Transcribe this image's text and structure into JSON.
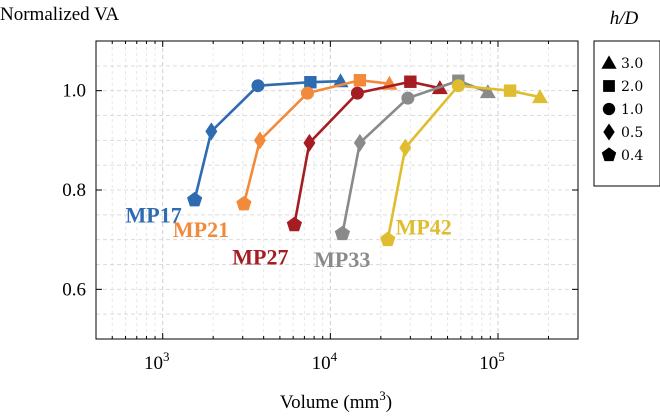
{
  "chart_data": {
    "type": "scatter",
    "ylabel": "Normalized VA",
    "xlabel_main": "Volume (mm",
    "xlabel_exp": "3",
    "xlabel_tail": ")",
    "x_scale": "log",
    "xlim": [
      400,
      300000
    ],
    "ylim": [
      0.5,
      1.1
    ],
    "grid": true,
    "x_ticks": [
      {
        "value": 1000,
        "base": "10",
        "exp": "3"
      },
      {
        "value": 10000,
        "base": "10",
        "exp": "4"
      },
      {
        "value": 100000,
        "base": "10",
        "exp": "5"
      }
    ],
    "y_ticks": [
      {
        "value": 0.6,
        "label": "0.6"
      },
      {
        "value": 0.8,
        "label": "0.8"
      },
      {
        "value": 1.0,
        "label": "1.0"
      }
    ],
    "legend": {
      "title": "h/D",
      "position": "right",
      "entries": [
        {
          "marker": "triangle",
          "label": "3.0"
        },
        {
          "marker": "square",
          "label": "2.0"
        },
        {
          "marker": "circle",
          "label": "1.0"
        },
        {
          "marker": "diamond",
          "label": "0.5"
        },
        {
          "marker": "pentagon",
          "label": "0.4"
        }
      ]
    },
    "series": [
      {
        "name": "MP17",
        "color": "#2e6bb0",
        "label_at": {
          "x": 600,
          "y": 0.735
        },
        "points": [
          {
            "x": 1550,
            "y": 0.78,
            "marker": "pentagon"
          },
          {
            "x": 1950,
            "y": 0.918,
            "marker": "diamond"
          },
          {
            "x": 3700,
            "y": 1.01,
            "marker": "circle"
          },
          {
            "x": 7600,
            "y": 1.017,
            "marker": "square"
          },
          {
            "x": 11500,
            "y": 1.019,
            "marker": "triangle"
          }
        ]
      },
      {
        "name": "MP21",
        "color": "#f28a3c",
        "label_at": {
          "x": 1150,
          "y": 0.705
        },
        "points": [
          {
            "x": 3050,
            "y": 0.772,
            "marker": "pentagon"
          },
          {
            "x": 3800,
            "y": 0.9,
            "marker": "diamond"
          },
          {
            "x": 7300,
            "y": 0.995,
            "marker": "circle"
          },
          {
            "x": 15000,
            "y": 1.021,
            "marker": "square"
          },
          {
            "x": 22500,
            "y": 1.014,
            "marker": "triangle"
          }
        ]
      },
      {
        "name": "MP27",
        "color": "#a61c23",
        "label_at": {
          "x": 2600,
          "y": 0.65
        },
        "points": [
          {
            "x": 6100,
            "y": 0.73,
            "marker": "pentagon"
          },
          {
            "x": 7500,
            "y": 0.895,
            "marker": "diamond"
          },
          {
            "x": 14500,
            "y": 0.995,
            "marker": "circle"
          },
          {
            "x": 30000,
            "y": 1.018,
            "marker": "square"
          },
          {
            "x": 45000,
            "y": 1.005,
            "marker": "triangle"
          }
        ]
      },
      {
        "name": "MP33",
        "color": "#8a8a8a",
        "label_at": {
          "x": 8000,
          "y": 0.645
        },
        "points": [
          {
            "x": 11800,
            "y": 0.712,
            "marker": "pentagon"
          },
          {
            "x": 15000,
            "y": 0.895,
            "marker": "diamond"
          },
          {
            "x": 29000,
            "y": 0.985,
            "marker": "circle"
          },
          {
            "x": 58000,
            "y": 1.02,
            "marker": "square"
          },
          {
            "x": 87000,
            "y": 0.997,
            "marker": "triangle"
          }
        ]
      },
      {
        "name": "MP42",
        "color": "#e0bd2e",
        "label_at": {
          "x": 24500,
          "y": 0.71
        },
        "points": [
          {
            "x": 22000,
            "y": 0.7,
            "marker": "pentagon"
          },
          {
            "x": 28000,
            "y": 0.885,
            "marker": "diamond"
          },
          {
            "x": 58000,
            "y": 1.01,
            "marker": "circle"
          },
          {
            "x": 118000,
            "y": 1.0,
            "marker": "square"
          },
          {
            "x": 178000,
            "y": 0.987,
            "marker": "triangle"
          }
        ]
      }
    ]
  }
}
